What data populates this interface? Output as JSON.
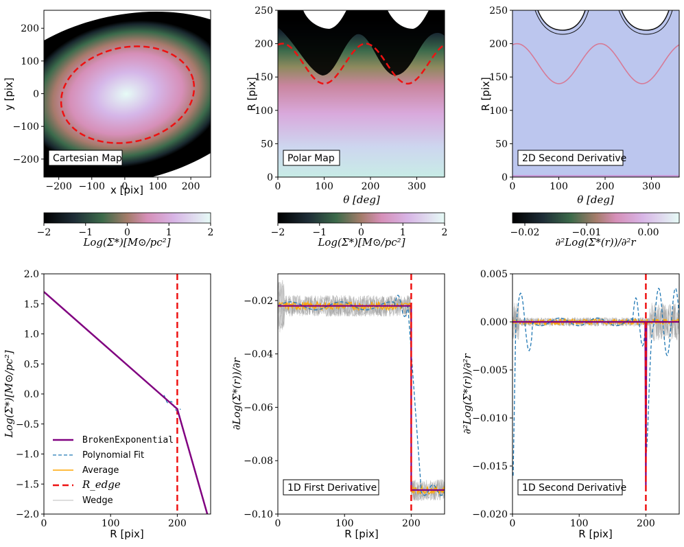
{
  "colors": {
    "edge": "#ee1111",
    "fit": "#1f77b4",
    "average": "#ffa500",
    "model": "#800080",
    "wedge": "#999999",
    "deriv_bg": "#bcc6ee",
    "curve_pink": "#d67a96"
  },
  "chart_data": [
    {
      "id": "cartesian",
      "type": "heatmap",
      "annotation": "Cartesian Map",
      "xlabel": "x [pix]",
      "ylabel": "y [pix]",
      "xlim": [
        -245,
        260
      ],
      "ylim": [
        -255,
        255
      ],
      "xticks": [
        -200,
        -100,
        0,
        100,
        200
      ],
      "yticks": [
        -200,
        -100,
        0,
        100,
        200
      ],
      "xtick_labels": [
        "−200",
        "−100",
        "0",
        "100",
        "200"
      ],
      "ytick_labels": [
        "−200",
        "−100",
        "0",
        "100",
        "200"
      ],
      "colorbar": {
        "label": "Log(Σ*)[M⊙/pc²]",
        "range": [
          -2,
          2
        ],
        "ticks": [
          "−2",
          "−1",
          "0",
          "1",
          "2"
        ]
      },
      "edge_ellipse": {
        "rx": 200,
        "ry": 140,
        "cx": 0,
        "cy": 0,
        "rotation_deg": -15
      }
    },
    {
      "id": "polar",
      "type": "heatmap",
      "annotation": "Polar Map",
      "xlabel": "θ [deg]",
      "ylabel": "R [pix]",
      "xlim": [
        0,
        360
      ],
      "ylim": [
        0,
        250
      ],
      "xticks": [
        0,
        100,
        200,
        300
      ],
      "yticks": [
        0,
        50,
        100,
        150,
        200,
        250
      ],
      "colorbar": {
        "label": "Log(Σ*)[M⊙/pc²]",
        "range": [
          -2,
          2
        ],
        "ticks": [
          "−2",
          "−1",
          "0",
          "1",
          "2"
        ]
      },
      "edge_curve": {
        "mean": 170,
        "amplitude": 30,
        "period_deg": 180,
        "peak_deg": 10
      }
    },
    {
      "id": "second_deriv_2d",
      "type": "heatmap",
      "annotation": "2D Second Derivative",
      "xlabel": "θ [deg]",
      "ylabel": "R [pix]",
      "xlim": [
        0,
        360
      ],
      "ylim": [
        0,
        250
      ],
      "xticks": [
        0,
        100,
        200,
        300
      ],
      "yticks": [
        0,
        50,
        100,
        150,
        200,
        250
      ],
      "colorbar": {
        "label": "∂²Log(Σ*(r))/∂²r",
        "range": [
          -0.022,
          0.005
        ],
        "ticks": [
          "−0.02",
          "−0.01",
          "0.00"
        ],
        "tick_values": [
          -0.02,
          -0.01,
          0.0
        ]
      }
    },
    {
      "id": "profile",
      "type": "line",
      "xlabel": "R [pix]",
      "ylabel": "Log(Σ*)[M⊙/pc²]",
      "xlim": [
        0,
        250
      ],
      "ylim": [
        -2.0,
        2.0
      ],
      "xticks": [
        0,
        100,
        200
      ],
      "yticks": [
        -2.0,
        -1.5,
        -1.0,
        -0.5,
        0.0,
        0.5,
        1.0,
        1.5,
        2.0
      ],
      "ytick_labels": [
        "−2.0",
        "−1.5",
        "−1.0",
        "−0.5",
        "0.0",
        "0.5",
        "1.0",
        "1.5",
        "2.0"
      ],
      "r_edge": 200,
      "series": [
        {
          "name": "BrokenExponential",
          "x": [
            0,
            200,
            245
          ],
          "y": [
            1.7,
            -0.25,
            -2.0
          ]
        }
      ],
      "legend": [
        "BrokenExponential",
        "Polynomial Fit",
        "Average",
        "R_edge",
        "Wedge"
      ]
    },
    {
      "id": "first_deriv",
      "type": "line",
      "annotation": "1D First Derivative",
      "xlabel": "R [pix]",
      "ylabel": "∂Log(Σ*(r))/∂r",
      "xlim": [
        0,
        250
      ],
      "ylim": [
        -0.1,
        -0.01
      ],
      "xticks": [
        0,
        100,
        200
      ],
      "yticks": [
        -0.02,
        -0.04,
        -0.06,
        -0.08,
        -0.1
      ],
      "ytick_labels": [
        "−0.02",
        "−0.04",
        "−0.06",
        "−0.08",
        "−0.10"
      ],
      "r_edge": 200,
      "inner_slope": -0.022,
      "outer_slope": -0.091
    },
    {
      "id": "second_deriv_1d",
      "type": "line",
      "annotation": "1D Second Derivative",
      "xlabel": "R [pix]",
      "ylabel": "∂²Log(Σ*(r))/∂²r",
      "xlim": [
        0,
        250
      ],
      "ylim": [
        -0.02,
        0.005
      ],
      "xticks": [
        0,
        100,
        200
      ],
      "yticks": [
        0.005,
        0.0,
        -0.005,
        -0.01,
        -0.015,
        -0.02
      ],
      "ytick_labels": [
        "0.005",
        "0.000",
        "−0.005",
        "−0.010",
        "−0.015",
        "−0.020"
      ],
      "r_edge": 200,
      "dip_min": -0.017
    }
  ]
}
